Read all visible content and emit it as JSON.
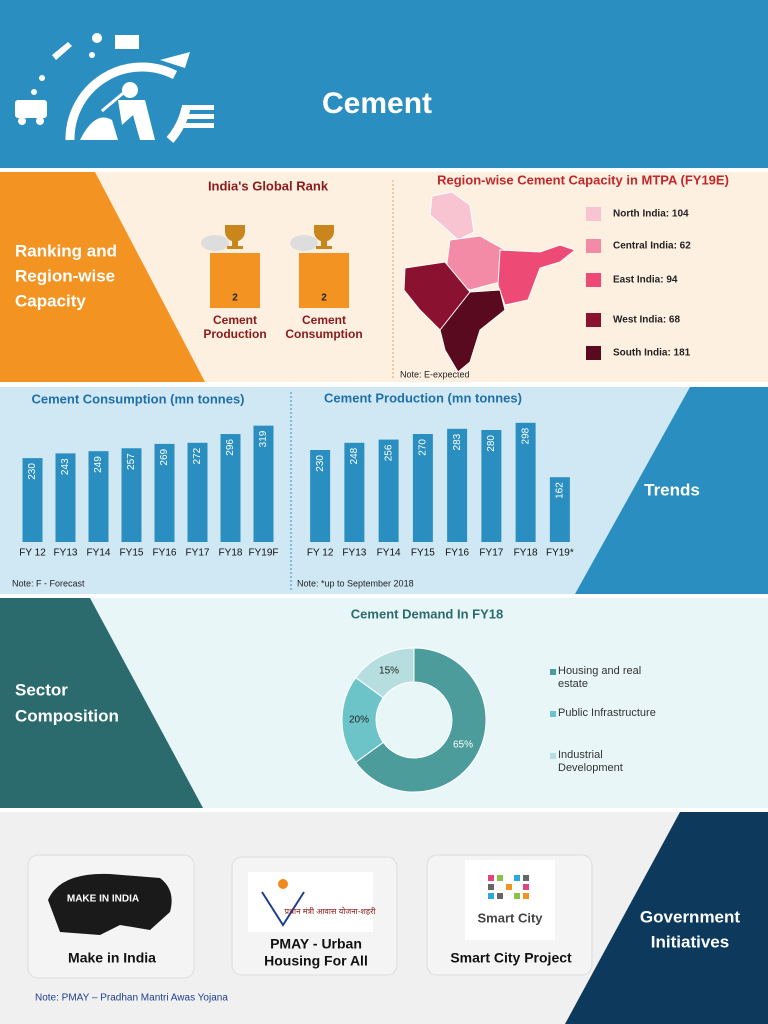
{
  "header": {
    "title": "Cement"
  },
  "ranking": {
    "label_lines": [
      "Ranking and",
      "Region-wise",
      "Capacity"
    ],
    "rank_title": "India's Global Rank",
    "ranks": [
      {
        "rank": 2,
        "label_lines": [
          "Cement",
          "Production"
        ]
      },
      {
        "rank": 2,
        "label_lines": [
          "Cement",
          "Consumption"
        ]
      }
    ],
    "map_title": "Region-wise Cement Capacity in MTPA (FY19E)",
    "regions": [
      {
        "label": "North India: 104",
        "color": "#f9c4d2"
      },
      {
        "label": "Central India: 62",
        "color": "#f38aa6"
      },
      {
        "label": "East India: 94",
        "color": "#ee4a76"
      },
      {
        "label": "West India: 68",
        "color": "#8a1230"
      },
      {
        "label": "South India: 181",
        "color": "#5a0a1e"
      }
    ],
    "note": "Note: E-expected"
  },
  "trends": {
    "label": "Trends",
    "notes": [
      "Note: F - Forecast",
      "Note: *up to September 2018"
    ]
  },
  "sector": {
    "label_lines": [
      "Sector",
      "Composition"
    ]
  },
  "chart_data": [
    {
      "type": "bar",
      "title": "Cement Consumption (mn tonnes)",
      "categories": [
        "FY 12",
        "FY13",
        "FY14",
        "FY15",
        "FY16",
        "FY17",
        "FY18",
        "FY19F"
      ],
      "values": [
        230,
        243,
        249,
        257,
        269,
        272,
        296,
        319
      ],
      "color": "#2a8fc0",
      "ylim": [
        0,
        340
      ]
    },
    {
      "type": "bar",
      "title": "Cement Production (mn tonnes)",
      "categories": [
        "FY 12",
        "FY13",
        "FY14",
        "FY15",
        "FY16",
        "FY17",
        "FY18",
        "FY19*"
      ],
      "values": [
        230,
        248,
        256,
        270,
        283,
        280,
        298,
        162
      ],
      "color": "#2a8fc0",
      "ylim": [
        0,
        310
      ]
    },
    {
      "type": "donut",
      "title": "Cement Demand In FY18",
      "categories": [
        "Housing and real estate",
        "Public Infrastructure",
        "Industrial Development"
      ],
      "values": [
        65,
        20,
        15
      ],
      "value_labels": [
        "65%",
        "20%",
        "15%"
      ],
      "colors": [
        "#4c9c9c",
        "#6cc4c9",
        "#b6dede"
      ]
    }
  ],
  "government": {
    "label_lines": [
      "Government",
      "Initiatives"
    ],
    "cards": [
      {
        "label_lines": [
          "Make in India"
        ],
        "logo_text": "MAKE IN INDIA"
      },
      {
        "label_lines": [
          "PMAY - Urban",
          "Housing For All"
        ],
        "logo_text": "प्रधान मंत्री आवास योजना-शहरी"
      },
      {
        "label_lines": [
          "Smart City Project"
        ],
        "logo_text": "Smart City"
      }
    ],
    "note": "Note: PMAY – Pradhan Mantri Awas Yojana"
  }
}
